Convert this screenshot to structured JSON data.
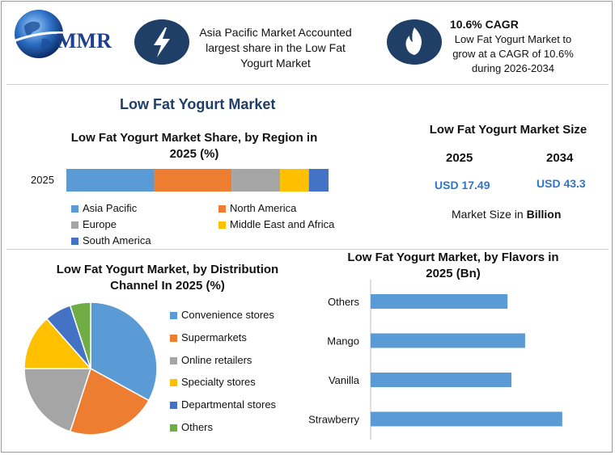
{
  "header": {
    "logo_text": "MMR",
    "callout1": {
      "icon": "lightning-bolt-icon",
      "text": "Asia Pacific Market Accounted largest share in the Low Fat Yogurt Market"
    },
    "callout2": {
      "icon": "flame-icon",
      "title": "10.6% CAGR",
      "text": "Low Fat Yogurt Market to grow at a CAGR of 10.6% during 2026-2034"
    }
  },
  "main_title": "Low Fat Yogurt Market",
  "market_size": {
    "title": "Low Fat Yogurt Market Size",
    "year1": "2025",
    "year2": "2034",
    "value1": "USD 17.49",
    "value2": "USD 43.3",
    "note_prefix": "Market Size in ",
    "note_bold": "Billion"
  },
  "chart_data": [
    {
      "type": "bar",
      "orientation": "horizontal-stacked",
      "title": "Low Fat Yogurt Market Share, by Region in 2025 (%)",
      "categories": [
        "2025"
      ],
      "series": [
        {
          "name": "Asia Pacific",
          "values": [
            33.5
          ],
          "color": "#5b9bd5"
        },
        {
          "name": "North America",
          "values": [
            29.5
          ],
          "color": "#ed7d31"
        },
        {
          "name": "Europe",
          "values": [
            18.5
          ],
          "color": "#a5a5a5"
        },
        {
          "name": "Middle East and Africa",
          "values": [
            11
          ],
          "color": "#ffc000"
        },
        {
          "name": "South America",
          "values": [
            7.5
          ],
          "color": "#4472c4"
        }
      ],
      "legend": "bottom"
    },
    {
      "type": "pie",
      "title": "Low Fat Yogurt Market, by Distribution Channel In 2025 (%)",
      "labels": [
        "Convenience stores",
        "Supermarkets",
        "Online retailers",
        "Specialty stores",
        "Departmental stores",
        "Others"
      ],
      "values": [
        33,
        22,
        20,
        13.5,
        6.5,
        5
      ],
      "colors": [
        "#5b9bd5",
        "#ed7d31",
        "#a5a5a5",
        "#ffc000",
        "#4472c4",
        "#70ad47"
      ],
      "legend": "right"
    },
    {
      "type": "bar",
      "orientation": "horizontal",
      "title": "Low Fat Yogurt Market, by Flavors in 2025 (Bn)",
      "categories": [
        "Others",
        "Mango",
        "Vanilla",
        "Strawberry"
      ],
      "values": [
        3.5,
        3.95,
        3.6,
        4.9
      ],
      "xlim": [
        0,
        6
      ],
      "color": "#5b9bd5"
    }
  ]
}
